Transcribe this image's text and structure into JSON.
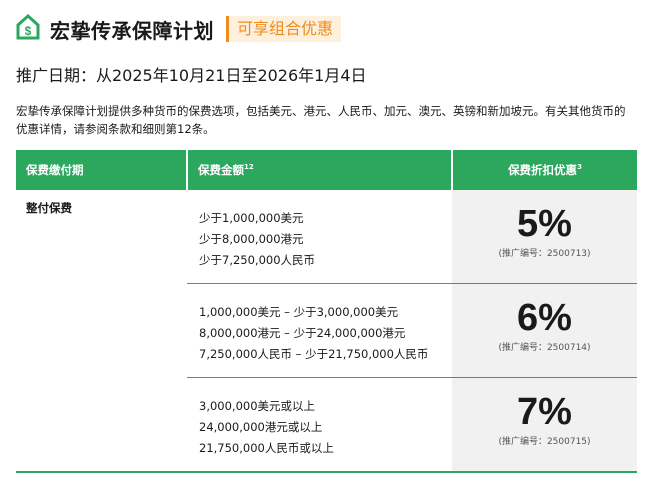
{
  "header": {
    "title": "宏挚传承保障计划",
    "badge": "可享组合优惠",
    "icon": "house-dollar-icon",
    "accent": "#2ba75e",
    "badge_color": "#f08c1e"
  },
  "promo_period": "推广日期：从2025年10月21日至2026年1月4日",
  "description": "宏挚传承保障计划提供多种货币的保费选项，包括美元、港元、人民币、加元、澳元、英镑和新加坡元。有关其他货币的优惠详情，请参阅条款和细则第12条。",
  "table": {
    "headers": [
      {
        "label": "保费缴付期",
        "sup": ""
      },
      {
        "label": "保费金额",
        "sup": "12"
      },
      {
        "label": "保费折扣优惠",
        "sup": "3"
      }
    ],
    "payment_term": "整付保费",
    "rows": [
      {
        "amounts": [
          "少于1,000,000美元",
          "少于8,000,000港元",
          "少于7,250,000人民币"
        ],
        "discount": "5%",
        "code": "(推广编号：2500713)"
      },
      {
        "amounts": [
          "1,000,000美元 – 少于3,000,000美元",
          "8,000,000港元 – 少于24,000,000港元",
          "7,250,000人民币 – 少于21,750,000人民币"
        ],
        "discount": "6%",
        "code": "(推广编号：2500714)"
      },
      {
        "amounts": [
          "3,000,000美元或以上",
          "24,000,000港元或以上",
          "21,750,000人民币或以上"
        ],
        "discount": "7%",
        "code": "(推广编号：2500715)"
      }
    ]
  }
}
